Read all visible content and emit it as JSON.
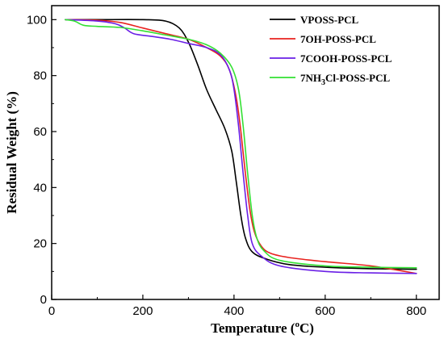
{
  "chart_data": {
    "type": "line",
    "title": "",
    "xlabel": {
      "main": "Temperature (",
      "sup": "o",
      "tail": "C)"
    },
    "ylabel": "Residual Weight (%)",
    "xlim": [
      0,
      850
    ],
    "ylim": [
      0,
      105
    ],
    "xticks": [
      0,
      200,
      400,
      600,
      800
    ],
    "yticks": [
      0,
      20,
      40,
      60,
      80,
      100
    ],
    "xtick_labels": [
      "0",
      "200",
      "400",
      "600",
      "800"
    ],
    "ytick_labels": [
      "0",
      "20",
      "40",
      "60",
      "80",
      "100"
    ],
    "grid": false,
    "legend_position": "top-right",
    "series": [
      {
        "name": "VPOSS-PCL",
        "color": "#000000",
        "points": [
          [
            30,
            100
          ],
          [
            100,
            100
          ],
          [
            200,
            100
          ],
          [
            250,
            99.5
          ],
          [
            280,
            97
          ],
          [
            300,
            92
          ],
          [
            320,
            84
          ],
          [
            340,
            75
          ],
          [
            360,
            68
          ],
          [
            380,
            61
          ],
          [
            395,
            53
          ],
          [
            405,
            42
          ],
          [
            415,
            30
          ],
          [
            425,
            22
          ],
          [
            440,
            17
          ],
          [
            470,
            14.5
          ],
          [
            520,
            12.5
          ],
          [
            600,
            11.5
          ],
          [
            700,
            11
          ],
          [
            800,
            10.8
          ]
        ]
      },
      {
        "name": "7OH-POSS-PCL",
        "color": "#e8231f",
        "points": [
          [
            30,
            100
          ],
          [
            100,
            99.8
          ],
          [
            150,
            99
          ],
          [
            200,
            97
          ],
          [
            250,
            95
          ],
          [
            300,
            93
          ],
          [
            340,
            90
          ],
          [
            370,
            87
          ],
          [
            390,
            82
          ],
          [
            405,
            72
          ],
          [
            415,
            60
          ],
          [
            425,
            45
          ],
          [
            435,
            32
          ],
          [
            445,
            24
          ],
          [
            460,
            19
          ],
          [
            480,
            16.5
          ],
          [
            520,
            15
          ],
          [
            600,
            13.5
          ],
          [
            700,
            12
          ],
          [
            800,
            9.3
          ]
        ]
      },
      {
        "name": "7COOH-POSS-PCL",
        "color": "#6a1fe6",
        "points": [
          [
            30,
            100
          ],
          [
            100,
            99.5
          ],
          [
            140,
            98.5
          ],
          [
            160,
            97
          ],
          [
            180,
            95
          ],
          [
            220,
            94
          ],
          [
            260,
            93
          ],
          [
            300,
            91.5
          ],
          [
            340,
            90
          ],
          [
            370,
            87.5
          ],
          [
            390,
            82
          ],
          [
            400,
            75
          ],
          [
            410,
            62
          ],
          [
            420,
            45
          ],
          [
            430,
            30
          ],
          [
            440,
            20
          ],
          [
            460,
            15.5
          ],
          [
            500,
            12
          ],
          [
            600,
            10
          ],
          [
            700,
            9.5
          ],
          [
            800,
            9.3
          ]
        ]
      },
      {
        "name": "7NH3Cl-POSS-PCL",
        "legend_label": {
          "pre": "7NH",
          "sub": "3",
          "post": "Cl-POSS-PCL"
        },
        "color": "#33e033",
        "points": [
          [
            30,
            100
          ],
          [
            50,
            99.5
          ],
          [
            70,
            98
          ],
          [
            100,
            97.6
          ],
          [
            150,
            97.2
          ],
          [
            200,
            96
          ],
          [
            250,
            94.5
          ],
          [
            300,
            93
          ],
          [
            340,
            91
          ],
          [
            370,
            88
          ],
          [
            395,
            83
          ],
          [
            410,
            75
          ],
          [
            420,
            62
          ],
          [
            430,
            45
          ],
          [
            440,
            30
          ],
          [
            450,
            22
          ],
          [
            465,
            17.5
          ],
          [
            500,
            14
          ],
          [
            600,
            12
          ],
          [
            700,
            11.5
          ],
          [
            800,
            11.3
          ]
        ]
      }
    ]
  }
}
